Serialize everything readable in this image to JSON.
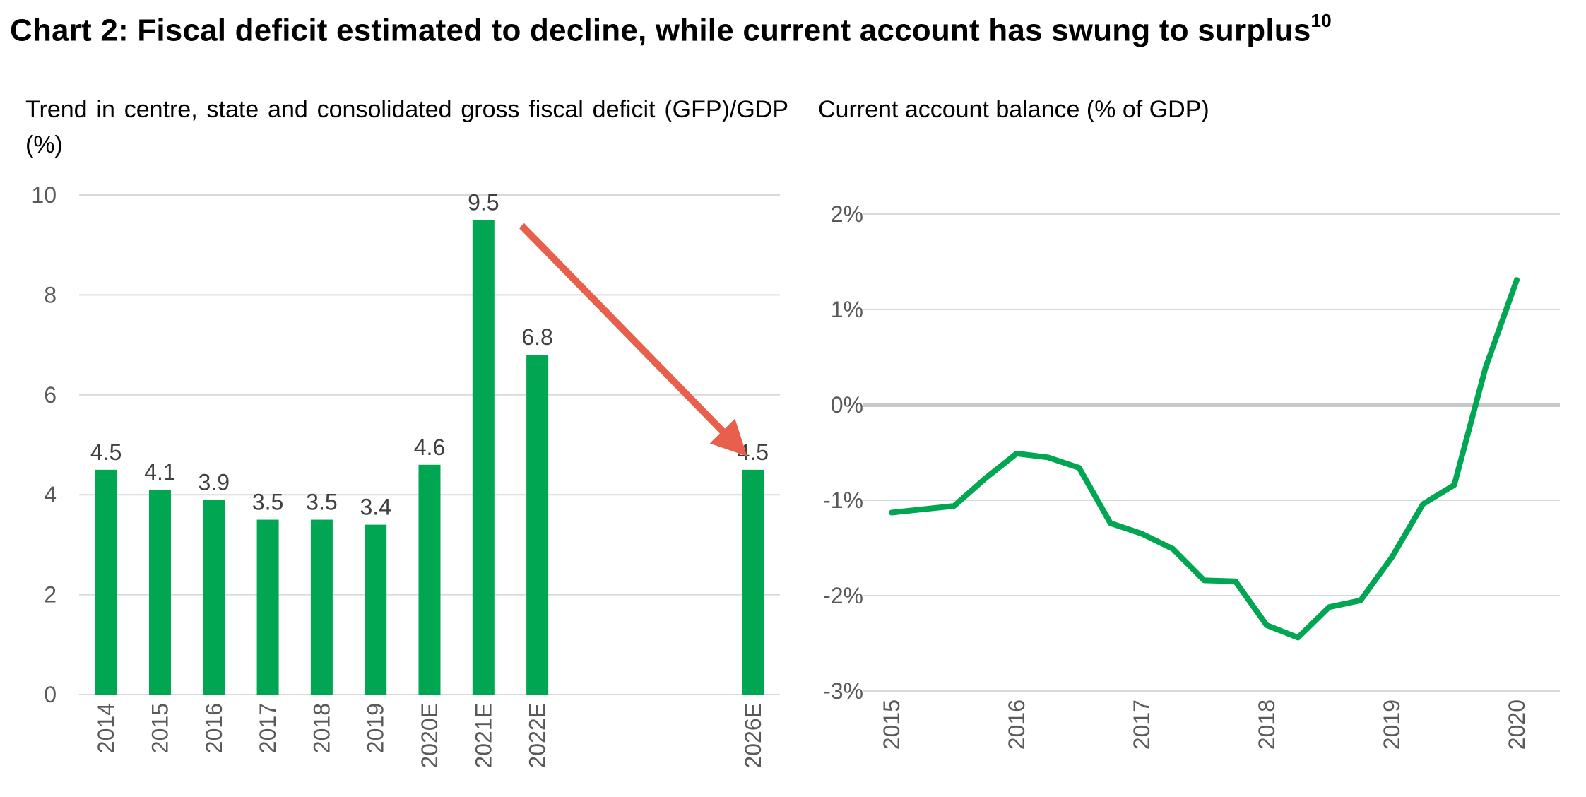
{
  "title": {
    "text": "Chart 2: Fiscal deficit estimated to decline, while current account has swung to surplus",
    "footnote": "10"
  },
  "chart_data": [
    {
      "type": "bar",
      "title": "Trend in centre, state and consolidated gross fiscal deficit (GFP)/GDP (%)",
      "categories": [
        "2014",
        "2015",
        "2016",
        "2017",
        "2018",
        "2019",
        "2020E",
        "2021E",
        "2022E",
        "",
        "",
        "",
        "2026E"
      ],
      "values": [
        4.5,
        4.1,
        3.9,
        3.5,
        3.5,
        3.4,
        4.6,
        9.5,
        6.8,
        null,
        null,
        null,
        4.5
      ],
      "data_labels": [
        "4.5",
        "4.1",
        "3.9",
        "3.5",
        "3.5",
        "3.4",
        "4.6",
        "9.5",
        "6.8",
        "",
        "",
        "",
        "4.5"
      ],
      "ylim": [
        0,
        10
      ],
      "yticks": [
        "0",
        "2",
        "4",
        "6",
        "8",
        "10"
      ],
      "grid": true,
      "bar_color": "#00a651",
      "annotation": {
        "type": "arrow",
        "from_category": "2021E",
        "to_category": "2026E",
        "color": "#e8604c"
      }
    },
    {
      "type": "line",
      "title": "Current account balance (% of GDP)",
      "x": [
        2015.0,
        2015.5,
        2015.75,
        2016.0,
        2016.25,
        2016.5,
        2016.75,
        2017.0,
        2017.25,
        2017.5,
        2017.75,
        2018.0,
        2018.25,
        2018.5,
        2018.75,
        2019.0,
        2019.25,
        2019.5,
        2019.75,
        2020.0
      ],
      "y": [
        -1.13,
        -1.06,
        -0.77,
        -0.51,
        -0.55,
        -0.66,
        -1.24,
        -1.35,
        -1.51,
        -1.84,
        -1.85,
        -2.31,
        -2.44,
        -2.12,
        -2.05,
        -1.6,
        -1.04,
        -0.84,
        0.39,
        1.31
      ],
      "xticks": [
        "2015",
        "2016",
        "2017",
        "2018",
        "2019",
        "2020"
      ],
      "yticks": [
        "-3%",
        "-2%",
        "-1%",
        "0%",
        "1%",
        "2%"
      ],
      "ylim": [
        -3,
        2.3
      ],
      "grid": true,
      "line_color": "#00a651"
    }
  ]
}
